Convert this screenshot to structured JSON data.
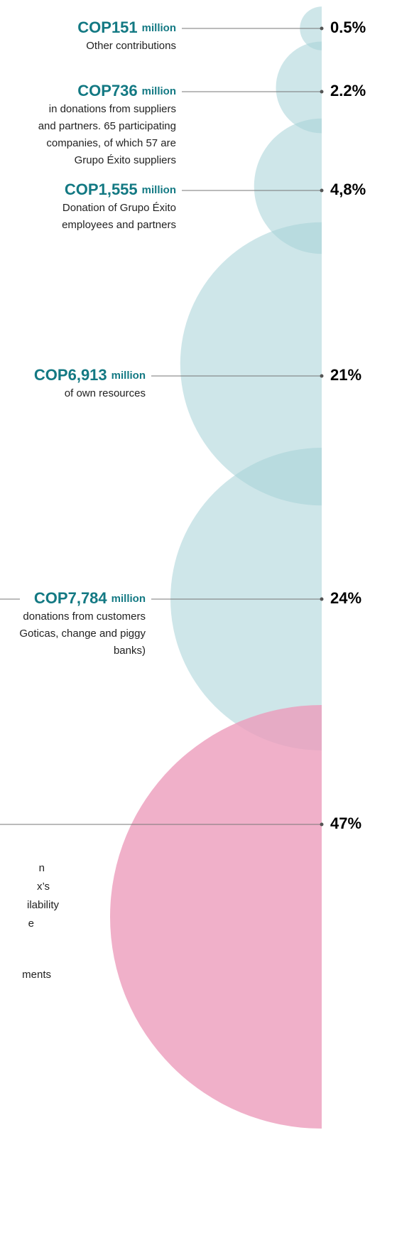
{
  "chart_data": {
    "type": "half-bubble",
    "values": [
      0.5,
      2.2,
      4.8,
      21,
      24,
      47
    ],
    "value_labels": [
      "0.5%",
      "2.2%",
      "4,8%",
      "21%",
      "24%",
      "47%"
    ],
    "colors": [
      "#a6d2d7",
      "#a6d2d7",
      "#a6d2d7",
      "#a6d2d7",
      "#a6d2d7",
      "#ec9cbb"
    ],
    "items": [
      {
        "amount": "COP151",
        "unit": "million",
        "lines": [
          "Other contributions"
        ]
      },
      {
        "amount": "COP736",
        "unit": "million",
        "lines": [
          "in donations from suppliers",
          "and partners. 65 participating",
          "companies, of which 57 are",
          "Grupo Éxito suppliers"
        ]
      },
      {
        "amount": "COP1,555",
        "unit": "million",
        "lines": [
          "Donation of Grupo Éxito",
          "employees and partners"
        ]
      },
      {
        "amount": "COP6,913",
        "unit": "million",
        "lines": [
          "of own resources"
        ]
      },
      {
        "amount": "COP7,784",
        "unit": "million",
        "lines": [
          "donations from customers",
          "Goticas, change and piggy",
          "banks)"
        ]
      },
      {
        "lines": [
          "n",
          "x’s",
          "ilability",
          "e",
          "ments"
        ]
      }
    ]
  }
}
